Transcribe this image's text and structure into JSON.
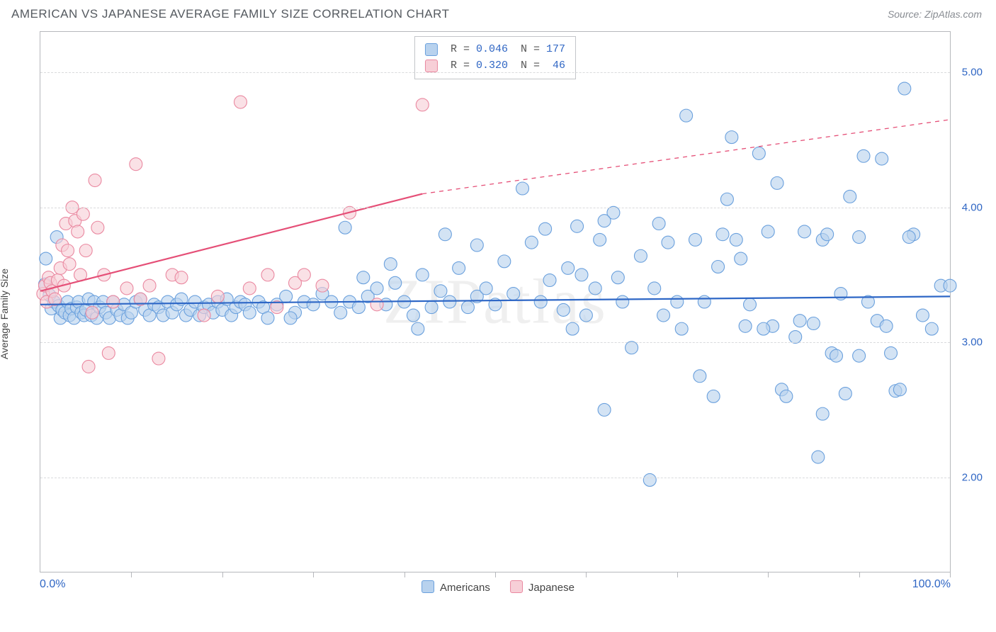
{
  "title": "AMERICAN VS JAPANESE AVERAGE FAMILY SIZE CORRELATION CHART",
  "source": "Source: ZipAtlas.com",
  "watermark": "ZIPatlas",
  "ylabel": "Average Family Size",
  "chart": {
    "type": "scatter",
    "background_color": "#ffffff",
    "grid_color": "#d9dadc",
    "axis_color": "#b6b8bc",
    "text_color": "#555a60",
    "value_color": "#2f66c4",
    "xlim": [
      0,
      100
    ],
    "ylim": [
      1.3,
      5.3
    ],
    "y_ticks": [
      2.0,
      3.0,
      4.0,
      5.0
    ],
    "x_ticks_minor": [
      10,
      20,
      30,
      40,
      50,
      60,
      70,
      80,
      90,
      100
    ],
    "x_min_label": "0.0%",
    "x_max_label": "100.0%",
    "marker_radius": 9,
    "marker_stroke_width": 1.1,
    "series": [
      {
        "name": "Americans",
        "fill": "#b8d2ee",
        "stroke": "#6aa0dd",
        "line_color": "#2e67c6",
        "line_width": 2.2,
        "trend": {
          "x1": 0,
          "y1": 3.28,
          "x2": 100,
          "y2": 3.34,
          "r": "0.046",
          "n": "177"
        },
        "points": [
          [
            0.5,
            3.43
          ],
          [
            0.6,
            3.62
          ],
          [
            1,
            3.35
          ],
          [
            1.2,
            3.25
          ],
          [
            1.5,
            3.3
          ],
          [
            1.8,
            3.78
          ],
          [
            2,
            3.27
          ],
          [
            2.2,
            3.18
          ],
          [
            2.4,
            3.24
          ],
          [
            2.7,
            3.22
          ],
          [
            3,
            3.3
          ],
          [
            3.2,
            3.2
          ],
          [
            3.4,
            3.25
          ],
          [
            3.7,
            3.18
          ],
          [
            4,
            3.26
          ],
          [
            4.2,
            3.3
          ],
          [
            4.5,
            3.22
          ],
          [
            4.8,
            3.2
          ],
          [
            5,
            3.24
          ],
          [
            5.3,
            3.32
          ],
          [
            5.6,
            3.2
          ],
          [
            5.9,
            3.3
          ],
          [
            6.2,
            3.18
          ],
          [
            6.5,
            3.26
          ],
          [
            6.9,
            3.3
          ],
          [
            7.2,
            3.22
          ],
          [
            7.6,
            3.18
          ],
          [
            8,
            3.3
          ],
          [
            8.4,
            3.24
          ],
          [
            8.8,
            3.2
          ],
          [
            9.2,
            3.28
          ],
          [
            9.6,
            3.18
          ],
          [
            10,
            3.22
          ],
          [
            10.5,
            3.3
          ],
          [
            11,
            3.32
          ],
          [
            11.5,
            3.24
          ],
          [
            12,
            3.2
          ],
          [
            12.5,
            3.28
          ],
          [
            13,
            3.26
          ],
          [
            13.5,
            3.2
          ],
          [
            14,
            3.3
          ],
          [
            14.5,
            3.22
          ],
          [
            15,
            3.28
          ],
          [
            15.5,
            3.32
          ],
          [
            16,
            3.2
          ],
          [
            16.5,
            3.24
          ],
          [
            17,
            3.3
          ],
          [
            17.5,
            3.2
          ],
          [
            18,
            3.26
          ],
          [
            18.5,
            3.28
          ],
          [
            19,
            3.22
          ],
          [
            19.5,
            3.3
          ],
          [
            20,
            3.24
          ],
          [
            20.5,
            3.32
          ],
          [
            21,
            3.2
          ],
          [
            21.5,
            3.26
          ],
          [
            22,
            3.3
          ],
          [
            22.5,
            3.28
          ],
          [
            23,
            3.22
          ],
          [
            24,
            3.3
          ],
          [
            24.5,
            3.26
          ],
          [
            25,
            3.18
          ],
          [
            26,
            3.28
          ],
          [
            27,
            3.34
          ],
          [
            28,
            3.22
          ],
          [
            29,
            3.3
          ],
          [
            30,
            3.28
          ],
          [
            31,
            3.36
          ],
          [
            32,
            3.3
          ],
          [
            33,
            3.22
          ],
          [
            33.5,
            3.85
          ],
          [
            34,
            3.3
          ],
          [
            35,
            3.26
          ],
          [
            36,
            3.34
          ],
          [
            37,
            3.4
          ],
          [
            38,
            3.28
          ],
          [
            39,
            3.44
          ],
          [
            40,
            3.3
          ],
          [
            41,
            3.2
          ],
          [
            42,
            3.5
          ],
          [
            43,
            3.26
          ],
          [
            44,
            3.38
          ],
          [
            45,
            3.3
          ],
          [
            46,
            3.55
          ],
          [
            47,
            3.26
          ],
          [
            48,
            3.34
          ],
          [
            49,
            3.4
          ],
          [
            50,
            3.28
          ],
          [
            52,
            3.36
          ],
          [
            53,
            4.14
          ],
          [
            54,
            3.74
          ],
          [
            55,
            3.3
          ],
          [
            56,
            3.46
          ],
          [
            57.5,
            3.24
          ],
          [
            58,
            3.55
          ],
          [
            59,
            3.86
          ],
          [
            60,
            3.2
          ],
          [
            61,
            3.4
          ],
          [
            61.5,
            3.76
          ],
          [
            62,
            2.5
          ],
          [
            63,
            3.96
          ],
          [
            63.5,
            3.48
          ],
          [
            64,
            3.3
          ],
          [
            65,
            2.96
          ],
          [
            66,
            3.64
          ],
          [
            67,
            1.98
          ],
          [
            68,
            3.88
          ],
          [
            69,
            3.74
          ],
          [
            70,
            3.3
          ],
          [
            71,
            4.68
          ],
          [
            72,
            3.76
          ],
          [
            72.5,
            2.75
          ],
          [
            73,
            3.3
          ],
          [
            74,
            2.6
          ],
          [
            75,
            3.8
          ],
          [
            76,
            4.52
          ],
          [
            76.5,
            3.76
          ],
          [
            77,
            3.62
          ],
          [
            78,
            3.28
          ],
          [
            79,
            4.4
          ],
          [
            80,
            3.82
          ],
          [
            80.5,
            3.12
          ],
          [
            81,
            4.18
          ],
          [
            81.5,
            2.65
          ],
          [
            82,
            2.6
          ],
          [
            83,
            3.04
          ],
          [
            84,
            3.82
          ],
          [
            85,
            3.14
          ],
          [
            85.5,
            2.15
          ],
          [
            86,
            3.76
          ],
          [
            87,
            2.92
          ],
          [
            87.5,
            2.9
          ],
          [
            88,
            3.36
          ],
          [
            89,
            4.08
          ],
          [
            90,
            2.9
          ],
          [
            90.5,
            4.38
          ],
          [
            91,
            3.3
          ],
          [
            92,
            3.16
          ],
          [
            92.5,
            4.36
          ],
          [
            93,
            3.12
          ],
          [
            94,
            2.64
          ],
          [
            94.5,
            2.65
          ],
          [
            95,
            4.88
          ],
          [
            96,
            3.8
          ],
          [
            97,
            3.2
          ],
          [
            98,
            3.1
          ],
          [
            99,
            3.42
          ],
          [
            100,
            3.42
          ],
          [
            62,
            3.9
          ],
          [
            58.5,
            3.1
          ],
          [
            48,
            3.72
          ],
          [
            38.5,
            3.58
          ],
          [
            44.5,
            3.8
          ],
          [
            51,
            3.6
          ],
          [
            55.5,
            3.84
          ],
          [
            67.5,
            3.4
          ],
          [
            70.5,
            3.1
          ],
          [
            74.5,
            3.56
          ],
          [
            77.5,
            3.12
          ],
          [
            79.5,
            3.1
          ],
          [
            83.5,
            3.16
          ],
          [
            86.5,
            3.8
          ],
          [
            88.5,
            2.62
          ],
          [
            90,
            3.78
          ],
          [
            93.5,
            2.92
          ],
          [
            95.5,
            3.78
          ],
          [
            86,
            2.47
          ],
          [
            75.5,
            4.06
          ],
          [
            68.5,
            3.2
          ],
          [
            59.5,
            3.5
          ],
          [
            41.5,
            3.1
          ],
          [
            35.5,
            3.48
          ],
          [
            27.5,
            3.18
          ]
        ]
      },
      {
        "name": "Japanese",
        "fill": "#f7cfd7",
        "stroke": "#ea88a0",
        "line_color": "#e54f77",
        "line_width": 2.2,
        "trend": {
          "x1": 0,
          "y1": 3.38,
          "x2": 42,
          "y2": 4.1,
          "x2_ext": 100,
          "y2_ext": 4.65,
          "r": "0.320",
          "n": "46"
        },
        "points": [
          [
            0.3,
            3.36
          ],
          [
            0.5,
            3.42
          ],
          [
            0.7,
            3.3
          ],
          [
            0.9,
            3.48
          ],
          [
            1.1,
            3.44
          ],
          [
            1.3,
            3.38
          ],
          [
            1.6,
            3.32
          ],
          [
            1.9,
            3.46
          ],
          [
            2.2,
            3.55
          ],
          [
            2.4,
            3.72
          ],
          [
            2.6,
            3.42
          ],
          [
            2.8,
            3.88
          ],
          [
            3.0,
            3.68
          ],
          [
            3.2,
            3.58
          ],
          [
            3.5,
            4.0
          ],
          [
            3.8,
            3.9
          ],
          [
            4.1,
            3.82
          ],
          [
            4.4,
            3.5
          ],
          [
            4.7,
            3.95
          ],
          [
            5.0,
            3.68
          ],
          [
            5.3,
            2.82
          ],
          [
            5.7,
            3.22
          ],
          [
            6.0,
            4.2
          ],
          [
            6.3,
            3.85
          ],
          [
            7.0,
            3.5
          ],
          [
            7.5,
            2.92
          ],
          [
            8.0,
            3.3
          ],
          [
            9.5,
            3.4
          ],
          [
            10.5,
            4.32
          ],
          [
            11,
            3.32
          ],
          [
            12,
            3.42
          ],
          [
            13,
            2.88
          ],
          [
            14.5,
            3.5
          ],
          [
            15.5,
            3.48
          ],
          [
            18,
            3.2
          ],
          [
            19.5,
            3.34
          ],
          [
            22,
            4.78
          ],
          [
            23,
            3.4
          ],
          [
            25,
            3.5
          ],
          [
            26,
            3.26
          ],
          [
            28,
            3.44
          ],
          [
            29,
            3.5
          ],
          [
            31,
            3.42
          ],
          [
            34,
            3.96
          ],
          [
            37,
            3.28
          ],
          [
            42,
            4.76
          ]
        ]
      }
    ]
  },
  "footer_legend": [
    {
      "label": "Americans",
      "fill": "#b8d2ee",
      "stroke": "#6aa0dd"
    },
    {
      "label": "Japanese",
      "fill": "#f7cfd7",
      "stroke": "#ea88a0"
    }
  ]
}
